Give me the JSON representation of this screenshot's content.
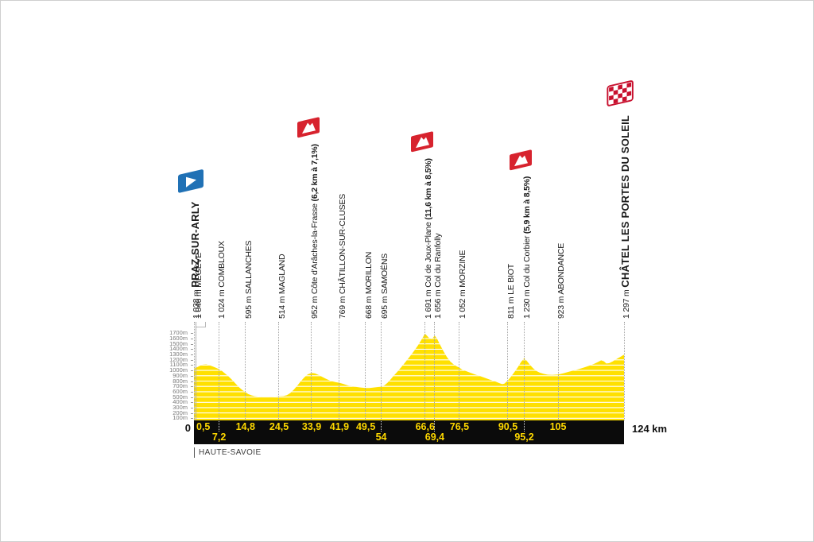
{
  "figure": {
    "department": "HAUTE-SAVOIE",
    "km_zero_label": "0",
    "km_total_label": "124 km"
  },
  "colors": {
    "profile_yellow": "#FFE000",
    "grid_white": "#FFFFFF",
    "bar_black": "#0B0B0B",
    "km_text_yellow": "#FFD900",
    "climb_flag_red": "#D7232E",
    "start_flag_blue": "#2071B5",
    "finish_flag_red": "#C8102E",
    "dotted_line": "#A3A3A3",
    "axis_text": "#7A7A7A",
    "label_text": "#1A1A1A"
  },
  "chart_data": {
    "type": "area",
    "xlabel": "km",
    "ylabel": "altitude",
    "x_range_km": [
      0,
      124
    ],
    "ylim_m": [
      0,
      1700
    ],
    "grid": true,
    "y_axis_labels": [
      "1700m",
      "1600m",
      "1500m",
      "1400m",
      "1300m",
      "1200m",
      "1100m",
      "1000m",
      "900m",
      "800m",
      "700m",
      "600m",
      "500m",
      "400m",
      "300m",
      "200m",
      "100m"
    ],
    "waypoints": [
      {
        "km": 0,
        "elevation": "1 038 m",
        "name": "PRAZ-SUR-ARLY",
        "type": "start",
        "icon": "start-flag",
        "km_label": "0",
        "km_row": "outside-left"
      },
      {
        "km": 0.5,
        "elevation": "1 046 m",
        "name": "MEGÈVE",
        "type": "town",
        "km_label": "0,5",
        "km_row": "top"
      },
      {
        "km": 7.2,
        "elevation": "1 024 m",
        "name": "COMBLOUX",
        "type": "town",
        "km_label": "7,2",
        "km_row": "bottom"
      },
      {
        "km": 14.8,
        "elevation": "595 m",
        "name": "SALLANCHES",
        "type": "town",
        "km_label": "14,8",
        "km_row": "top"
      },
      {
        "km": 24.5,
        "elevation": "514 m",
        "name": "MAGLAND",
        "type": "town",
        "km_label": "24,5",
        "km_row": "top"
      },
      {
        "km": 33.9,
        "elevation": "952 m",
        "name": "Côte d'Arâches-la-Frasse",
        "detail": "(6,2 km à 7,1%)",
        "type": "climb",
        "icon": "climb-flag",
        "km_label": "33,9",
        "km_row": "top"
      },
      {
        "km": 41.9,
        "elevation": "769 m",
        "name": "CHÂTILLON-SUR-CLUSES",
        "type": "town",
        "km_label": "41,9",
        "km_row": "top"
      },
      {
        "km": 49.5,
        "elevation": "668 m",
        "name": "MORILLON",
        "type": "town",
        "km_label": "49,5",
        "km_row": "top"
      },
      {
        "km": 54,
        "elevation": "695 m",
        "name": "SAMOËNS",
        "type": "town",
        "km_label": "54",
        "km_row": "bottom"
      },
      {
        "km": 66.6,
        "elevation": "1 691 m",
        "name": "Col de Joux-Plane",
        "detail": "(11,6 km à 8,5%)",
        "type": "climb",
        "icon": "climb-flag",
        "km_label": "66,6",
        "km_row": "top"
      },
      {
        "km": 69.4,
        "elevation": "1 656 m",
        "name": "Col du Ranfolly",
        "type": "climb-sub",
        "km_label": "69,4",
        "km_row": "bottom"
      },
      {
        "km": 76.5,
        "elevation": "1 052 m",
        "name": "MORZINE",
        "type": "town",
        "km_label": "76,5",
        "km_row": "top"
      },
      {
        "km": 90.5,
        "elevation": "811 m",
        "name": "LE BIOT",
        "type": "town",
        "km_label": "90,5",
        "km_row": "top"
      },
      {
        "km": 95.2,
        "elevation": "1 230 m",
        "name": "Col du Corbier",
        "detail": "(5,9 km à 8,5%)",
        "type": "climb",
        "icon": "climb-flag",
        "km_label": "95,2",
        "km_row": "bottom"
      },
      {
        "km": 105,
        "elevation": "923 m",
        "name": "ABONDANCE",
        "type": "town",
        "km_label": "105",
        "km_row": "top"
      },
      {
        "km": 124,
        "elevation": "1 297 m",
        "name": "CHÂTEL LES PORTES DU SOLEIL",
        "type": "finish",
        "icon": "finish-flag",
        "km_label": "124 km",
        "km_row": "outside-right"
      }
    ],
    "profile": [
      [
        0,
        1038
      ],
      [
        0.5,
        1046
      ],
      [
        1.5,
        1080
      ],
      [
        2.5,
        1108
      ],
      [
        3.5,
        1115
      ],
      [
        4.5,
        1098
      ],
      [
        5.5,
        1072
      ],
      [
        6.4,
        1048
      ],
      [
        7.2,
        1024
      ],
      [
        8,
        995
      ],
      [
        9,
        940
      ],
      [
        10,
        885
      ],
      [
        11,
        822
      ],
      [
        12,
        752
      ],
      [
        13,
        685
      ],
      [
        14,
        628
      ],
      [
        14.8,
        595
      ],
      [
        15.6,
        558
      ],
      [
        16.5,
        532
      ],
      [
        17.5,
        516
      ],
      [
        18.5,
        508
      ],
      [
        20,
        503
      ],
      [
        21.5,
        503
      ],
      [
        23,
        507
      ],
      [
        24.5,
        514
      ],
      [
        25.8,
        518
      ],
      [
        26.8,
        535
      ],
      [
        27.8,
        575
      ],
      [
        28.8,
        640
      ],
      [
        29.8,
        715
      ],
      [
        30.8,
        795
      ],
      [
        31.8,
        868
      ],
      [
        32.8,
        925
      ],
      [
        33.9,
        952
      ],
      [
        34.9,
        943
      ],
      [
        35.9,
        915
      ],
      [
        37,
        878
      ],
      [
        38,
        845
      ],
      [
        39,
        815
      ],
      [
        40,
        792
      ],
      [
        41,
        777
      ],
      [
        41.9,
        769
      ],
      [
        43,
        747
      ],
      [
        44.5,
        717
      ],
      [
        46,
        697
      ],
      [
        47.8,
        680
      ],
      [
        49.5,
        668
      ],
      [
        50.6,
        669
      ],
      [
        51.6,
        676
      ],
      [
        52.8,
        686
      ],
      [
        54,
        695
      ],
      [
        54.9,
        718
      ],
      [
        55.8,
        765
      ],
      [
        56.7,
        832
      ],
      [
        57.6,
        900
      ],
      [
        58.6,
        972
      ],
      [
        59.6,
        1048
      ],
      [
        60.6,
        1128
      ],
      [
        61.6,
        1210
      ],
      [
        62.6,
        1292
      ],
      [
        63.6,
        1378
      ],
      [
        64.6,
        1472
      ],
      [
        65.6,
        1578
      ],
      [
        66.6,
        1691
      ],
      [
        67.2,
        1652
      ],
      [
        67.9,
        1605
      ],
      [
        68.6,
        1588
      ],
      [
        69.4,
        1656
      ],
      [
        70.1,
        1598
      ],
      [
        70.9,
        1492
      ],
      [
        71.9,
        1366
      ],
      [
        72.9,
        1255
      ],
      [
        73.9,
        1168
      ],
      [
        74.9,
        1112
      ],
      [
        75.7,
        1078
      ],
      [
        76.5,
        1052
      ],
      [
        77.4,
        1014
      ],
      [
        78.4,
        988
      ],
      [
        79.6,
        958
      ],
      [
        81,
        925
      ],
      [
        82.5,
        892
      ],
      [
        84,
        858
      ],
      [
        85.5,
        822
      ],
      [
        87,
        788
      ],
      [
        88.3,
        755
      ],
      [
        88.9,
        742
      ],
      [
        89.5,
        752
      ],
      [
        90.5,
        811
      ],
      [
        91.4,
        882
      ],
      [
        92.4,
        968
      ],
      [
        93.4,
        1062
      ],
      [
        94.3,
        1158
      ],
      [
        95.2,
        1230
      ],
      [
        95.9,
        1186
      ],
      [
        96.8,
        1112
      ],
      [
        97.7,
        1046
      ],
      [
        98.7,
        992
      ],
      [
        99.7,
        958
      ],
      [
        100.8,
        936
      ],
      [
        102,
        920
      ],
      [
        103.3,
        915
      ],
      [
        105,
        923
      ],
      [
        106.5,
        946
      ],
      [
        108,
        974
      ],
      [
        109.5,
        1000
      ],
      [
        111,
        1026
      ],
      [
        112.5,
        1056
      ],
      [
        114,
        1090
      ],
      [
        115.3,
        1122
      ],
      [
        116.4,
        1156
      ],
      [
        117.4,
        1190
      ],
      [
        118.2,
        1172
      ],
      [
        118.9,
        1130
      ],
      [
        119.7,
        1136
      ],
      [
        120.7,
        1168
      ],
      [
        121.8,
        1212
      ],
      [
        122.9,
        1254
      ],
      [
        124,
        1297
      ]
    ]
  }
}
